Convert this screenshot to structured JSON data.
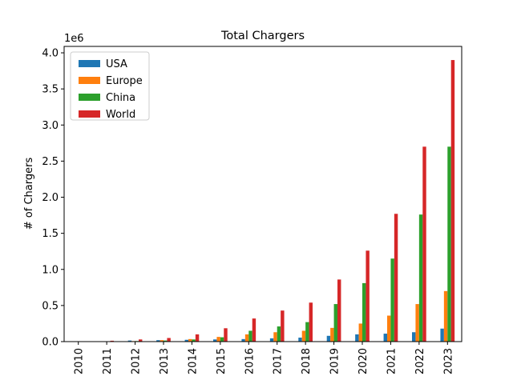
{
  "chart_data": {
    "type": "bar",
    "title": "Total Chargers",
    "ylabel": "# of Chargers",
    "y_offset_label": "1e6",
    "categories": [
      "2010",
      "2011",
      "2012",
      "2013",
      "2014",
      "2015",
      "2016",
      "2017",
      "2018",
      "2019",
      "2020",
      "2021",
      "2022",
      "2023"
    ],
    "series": [
      {
        "name": "USA",
        "color": "#1f77b4",
        "values": [
          0.001,
          0.004,
          0.015,
          0.02,
          0.025,
          0.03,
          0.035,
          0.045,
          0.055,
          0.08,
          0.1,
          0.11,
          0.13,
          0.18
        ]
      },
      {
        "name": "Europe",
        "color": "#ff7f0e",
        "values": [
          0.002,
          0.003,
          0.007,
          0.02,
          0.035,
          0.065,
          0.1,
          0.13,
          0.15,
          0.19,
          0.25,
          0.36,
          0.52,
          0.7
        ]
      },
      {
        "name": "China",
        "color": "#2ca02c",
        "values": [
          0.001,
          0.004,
          0.008,
          0.015,
          0.03,
          0.06,
          0.15,
          0.21,
          0.27,
          0.52,
          0.81,
          1.15,
          1.76,
          2.7
        ]
      },
      {
        "name": "World",
        "color": "#d62728",
        "values": [
          0.004,
          0.012,
          0.03,
          0.05,
          0.1,
          0.185,
          0.32,
          0.43,
          0.54,
          0.86,
          1.26,
          1.77,
          2.7,
          3.9
        ]
      }
    ],
    "ylim": [
      0,
      4.089
    ],
    "yticks": [
      {
        "value": 0,
        "label": "0.0"
      },
      {
        "value": 0.5,
        "label": "0.5"
      },
      {
        "value": 1,
        "label": "1.0"
      },
      {
        "value": 1.5,
        "label": "1.5"
      },
      {
        "value": 2,
        "label": "2.0"
      },
      {
        "value": 2.5,
        "label": "2.5"
      },
      {
        "value": 3,
        "label": "3.0"
      },
      {
        "value": 3.5,
        "label": "3.5"
      },
      {
        "value": 4,
        "label": "4.0"
      }
    ],
    "legend": "upper-left"
  }
}
